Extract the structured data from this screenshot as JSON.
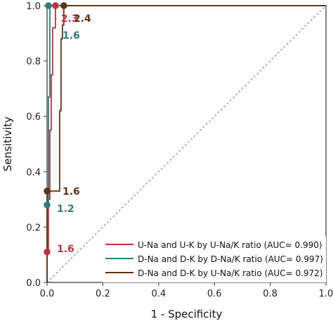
{
  "chart_data": {
    "type": "line",
    "xlabel": "1 - Specificity",
    "ylabel": "Sensitivity",
    "xlim": [
      0,
      1
    ],
    "ylim": [
      0,
      1
    ],
    "x_ticks": [
      "0.0",
      "0.2",
      "0.4",
      "0.6",
      "0.8",
      "1.0"
    ],
    "y_ticks": [
      "0.0",
      "0.2",
      "0.4",
      "0.6",
      "0.8",
      "1.0"
    ],
    "grid": false,
    "legend_position": "bottom-right",
    "reference_line": "diagonal dashed",
    "series": [
      {
        "name": "U-Na and U-K by U-Na/K ratio (AUC= 0.990)",
        "color": "#c0323c",
        "x": [
          0,
          0,
          0.005,
          0.005,
          0.01,
          0.01,
          0.015,
          0.015,
          0.02,
          0.02,
          0.03,
          0.03,
          1.0
        ],
        "y": [
          0,
          0.11,
          0.11,
          0.3,
          0.3,
          0.55,
          0.55,
          0.75,
          0.75,
          0.92,
          0.92,
          1.0,
          1.0
        ]
      },
      {
        "name": "D-Na and D-K by D-Na/K ratio (AUC= 0.997)",
        "color": "#2a7f78",
        "x": [
          0,
          0,
          0.005,
          0.005,
          0.01,
          0.01,
          1.0
        ],
        "y": [
          0,
          0.28,
          0.28,
          0.67,
          0.67,
          1.0,
          1.0
        ]
      },
      {
        "name": "D-Na and D-K by U-Na/K ratio (AUC= 0.972)",
        "color": "#5c3317",
        "x": [
          0,
          0,
          0.045,
          0.045,
          0.05,
          0.05,
          0.055,
          0.055,
          0.06,
          0.06,
          1.0
        ],
        "y": [
          0,
          0.33,
          0.33,
          0.62,
          0.62,
          0.88,
          0.88,
          0.93,
          0.93,
          1.0,
          1.0
        ]
      }
    ],
    "annotations": [
      {
        "text": "2.3",
        "x": 0.03,
        "y": 1.0,
        "color": "#c0323c",
        "marker": true,
        "dx": 8,
        "dy": 18
      },
      {
        "text": "2.4",
        "x": 0.06,
        "y": 1.0,
        "color": "#5c3317",
        "marker": true,
        "dx": 14,
        "dy": 18
      },
      {
        "text": "1.6",
        "x": 0.005,
        "y": 1.0,
        "color": "#2a7f78",
        "marker": true,
        "dx": 20,
        "dy": 42
      },
      {
        "text": "1.6",
        "x": 0.0,
        "y": 0.33,
        "color": "#5c3317",
        "marker": true,
        "dx": 22,
        "dy": 0
      },
      {
        "text": "1.2",
        "x": 0.0,
        "y": 0.28,
        "color": "#2a7f78",
        "marker": true,
        "dx": 14,
        "dy": 5
      },
      {
        "text": "1.6",
        "x": 0.0,
        "y": 0.11,
        "color": "#c0323c",
        "marker": true,
        "dx": 14,
        "dy": -5
      }
    ]
  }
}
